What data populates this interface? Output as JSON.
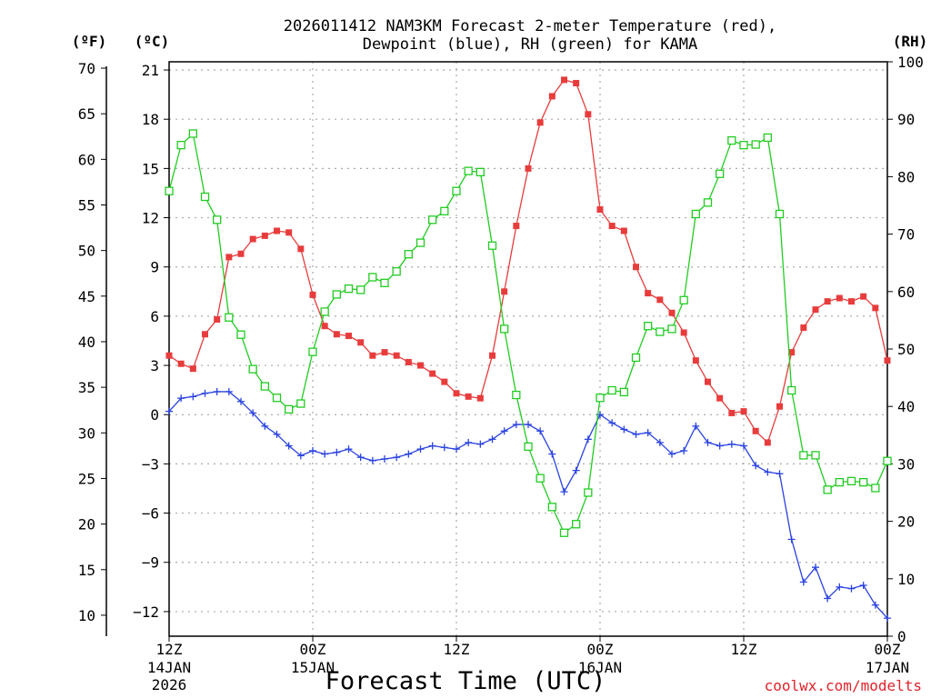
{
  "chart_data": {
    "type": "line",
    "title_line1": "2026011412 NAM3KM Forecast 2-meter Temperature (red),",
    "title_line2": "Dewpoint (blue), RH (green) for KAMA",
    "xlabel": "Forecast Time (UTC)",
    "credit": "coolwx.com/modelts",
    "units": {
      "fahrenheit": "(ºF)",
      "celsius": "(ºC)",
      "rh": "(RH)"
    },
    "x_range_hours": [
      0,
      60
    ],
    "celsius_range": [
      -13.5,
      21.5
    ],
    "rh_range": [
      0,
      100
    ],
    "fahrenheit_ticks": [
      "70",
      "65",
      "60",
      "55",
      "50",
      "45",
      "40",
      "35",
      "30",
      "25",
      "20",
      "15",
      "10"
    ],
    "fahrenheit_tick_values": [
      70,
      65,
      60,
      55,
      50,
      45,
      40,
      35,
      30,
      25,
      20,
      15,
      10
    ],
    "celsius_ticks": [
      "21",
      "18",
      "15",
      "12",
      "9",
      "6",
      "3",
      "0",
      "−3",
      "−6",
      "−9",
      "−12"
    ],
    "celsius_tick_values": [
      21,
      18,
      15,
      12,
      9,
      6,
      3,
      0,
      -3,
      -6,
      -9,
      -12
    ],
    "rh_ticks": [
      "100",
      "90",
      "80",
      "70",
      "60",
      "50",
      "40",
      "30",
      "20",
      "10",
      "0"
    ],
    "rh_tick_values": [
      100,
      90,
      80,
      70,
      60,
      50,
      40,
      30,
      20,
      10,
      0
    ],
    "x_ticks": [
      {
        "hour": 0,
        "line1": "12Z",
        "line2": "14JAN",
        "line3": "2026"
      },
      {
        "hour": 12,
        "line1": "00Z",
        "line2": "15JAN",
        "line3": ""
      },
      {
        "hour": 24,
        "line1": "12Z",
        "line2": "",
        "line3": ""
      },
      {
        "hour": 36,
        "line1": "00Z",
        "line2": "16JAN",
        "line3": ""
      },
      {
        "hour": 48,
        "line1": "12Z",
        "line2": "",
        "line3": ""
      },
      {
        "hour": 60,
        "line1": "00Z",
        "line2": "17JAN",
        "line3": ""
      }
    ],
    "series": [
      {
        "name": "2-meter Temperature",
        "axis": "celsius",
        "color": "#e83c3c",
        "marker": "filled-square",
        "values": [
          3.6,
          3.1,
          2.8,
          4.9,
          5.8,
          9.6,
          9.8,
          10.7,
          10.9,
          11.2,
          11.1,
          10.1,
          7.3,
          5.4,
          4.9,
          4.8,
          4.4,
          3.6,
          3.8,
          3.6,
          3.2,
          3.0,
          2.5,
          2.0,
          1.3,
          1.1,
          1.0,
          3.6,
          7.5,
          11.5,
          15.0,
          17.8,
          19.4,
          20.4,
          20.2,
          18.3,
          12.5,
          11.5,
          11.2,
          9.0,
          7.4,
          7.0,
          6.2,
          5.0,
          3.3,
          2.0,
          1.0,
          0.1,
          0.2,
          -1.0,
          -1.7,
          0.5,
          3.8,
          5.3,
          6.4,
          6.9,
          7.1,
          6.9,
          7.2,
          6.5,
          3.3
        ]
      },
      {
        "name": "Dewpoint",
        "axis": "celsius",
        "color": "#2b43e0",
        "marker": "plus",
        "values": [
          0.2,
          1.0,
          1.1,
          1.3,
          1.4,
          1.4,
          0.8,
          0.1,
          -0.7,
          -1.2,
          -1.9,
          -2.5,
          -2.2,
          -2.4,
          -2.3,
          -2.1,
          -2.6,
          -2.8,
          -2.7,
          -2.6,
          -2.4,
          -2.1,
          -1.9,
          -2.0,
          -2.1,
          -1.7,
          -1.8,
          -1.5,
          -1.0,
          -0.6,
          -0.6,
          -1.0,
          -2.4,
          -4.7,
          -3.4,
          -1.5,
          0.0,
          -0.5,
          -0.9,
          -1.2,
          -1.1,
          -1.7,
          -2.4,
          -2.2,
          -0.7,
          -1.7,
          -1.9,
          -1.8,
          -1.9,
          -3.1,
          -3.5,
          -3.6,
          -7.6,
          -10.2,
          -9.3,
          -11.2,
          -10.5,
          -10.6,
          -10.4,
          -11.6,
          -12.4
        ]
      },
      {
        "name": "RH",
        "axis": "rh",
        "color": "#22cc22",
        "marker": "open-square",
        "values": [
          77.5,
          85.5,
          87.5,
          76.5,
          72.5,
          55.5,
          52.5,
          46.5,
          43.5,
          41.5,
          39.5,
          40.5,
          49.5,
          56.5,
          59.5,
          60.5,
          60.3,
          62.5,
          61.5,
          63.5,
          66.5,
          68.5,
          72.5,
          74.0,
          77.5,
          81.0,
          80.8,
          68.0,
          53.5,
          42.0,
          33.0,
          27.5,
          22.5,
          18.0,
          19.5,
          25.0,
          41.5,
          42.8,
          42.5,
          48.5,
          54.0,
          53.0,
          53.5,
          58.5,
          73.5,
          75.5,
          80.5,
          86.3,
          85.5,
          85.6,
          86.8,
          73.5,
          42.8,
          31.5,
          31.5,
          25.5,
          26.8,
          27.0,
          26.8,
          25.8,
          30.5
        ]
      }
    ]
  }
}
